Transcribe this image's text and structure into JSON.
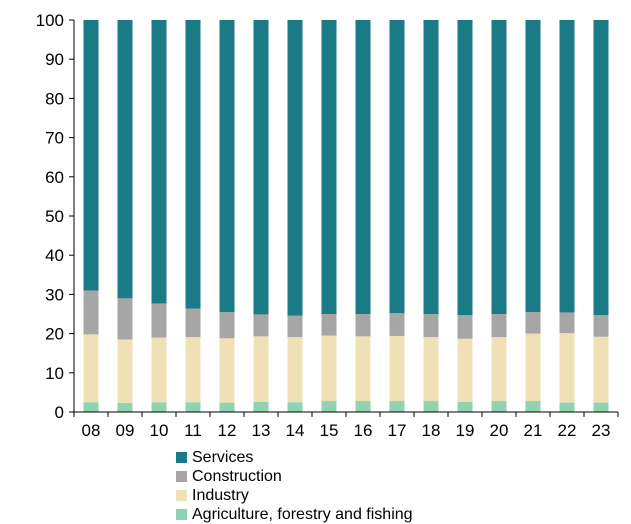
{
  "chart_data": {
    "type": "bar",
    "stacked": true,
    "categories": [
      "08",
      "09",
      "10",
      "11",
      "12",
      "13",
      "14",
      "15",
      "16",
      "17",
      "18",
      "19",
      "20",
      "21",
      "22",
      "23"
    ],
    "series": [
      {
        "name": "Agriculture, forestry and fishing",
        "color": "#8fd3b3",
        "values": [
          2.5,
          2.3,
          2.5,
          2.5,
          2.4,
          2.6,
          2.5,
          2.8,
          2.8,
          2.8,
          2.8,
          2.6,
          2.8,
          2.8,
          2.4,
          2.4
        ]
      },
      {
        "name": "Industry",
        "color": "#f0e0b6",
        "values": [
          17.3,
          16.2,
          16.5,
          16.6,
          16.4,
          16.7,
          16.6,
          16.7,
          16.5,
          16.6,
          16.3,
          16.1,
          16.3,
          17.2,
          17.7,
          16.8
        ]
      },
      {
        "name": "Construction",
        "color": "#a6a6a6",
        "values": [
          11.2,
          10.5,
          8.7,
          7.3,
          6.7,
          5.6,
          5.5,
          5.5,
          5.7,
          5.8,
          5.9,
          6.0,
          5.9,
          5.5,
          5.3,
          5.5
        ]
      },
      {
        "name": "Services",
        "color": "#1a7a86",
        "values": [
          69.0,
          71.0,
          72.3,
          73.6,
          74.5,
          75.1,
          75.4,
          75.0,
          75.0,
          74.8,
          75.0,
          75.3,
          75.0,
          74.5,
          74.6,
          75.3
        ]
      }
    ],
    "yticks": [
      0,
      10,
      20,
      30,
      40,
      50,
      60,
      70,
      80,
      90,
      100
    ],
    "ylim": [
      0,
      100
    ],
    "legend_position": "bottom",
    "legend_order": [
      "Services",
      "Construction",
      "Industry",
      "Agriculture, forestry and fishing"
    ]
  }
}
